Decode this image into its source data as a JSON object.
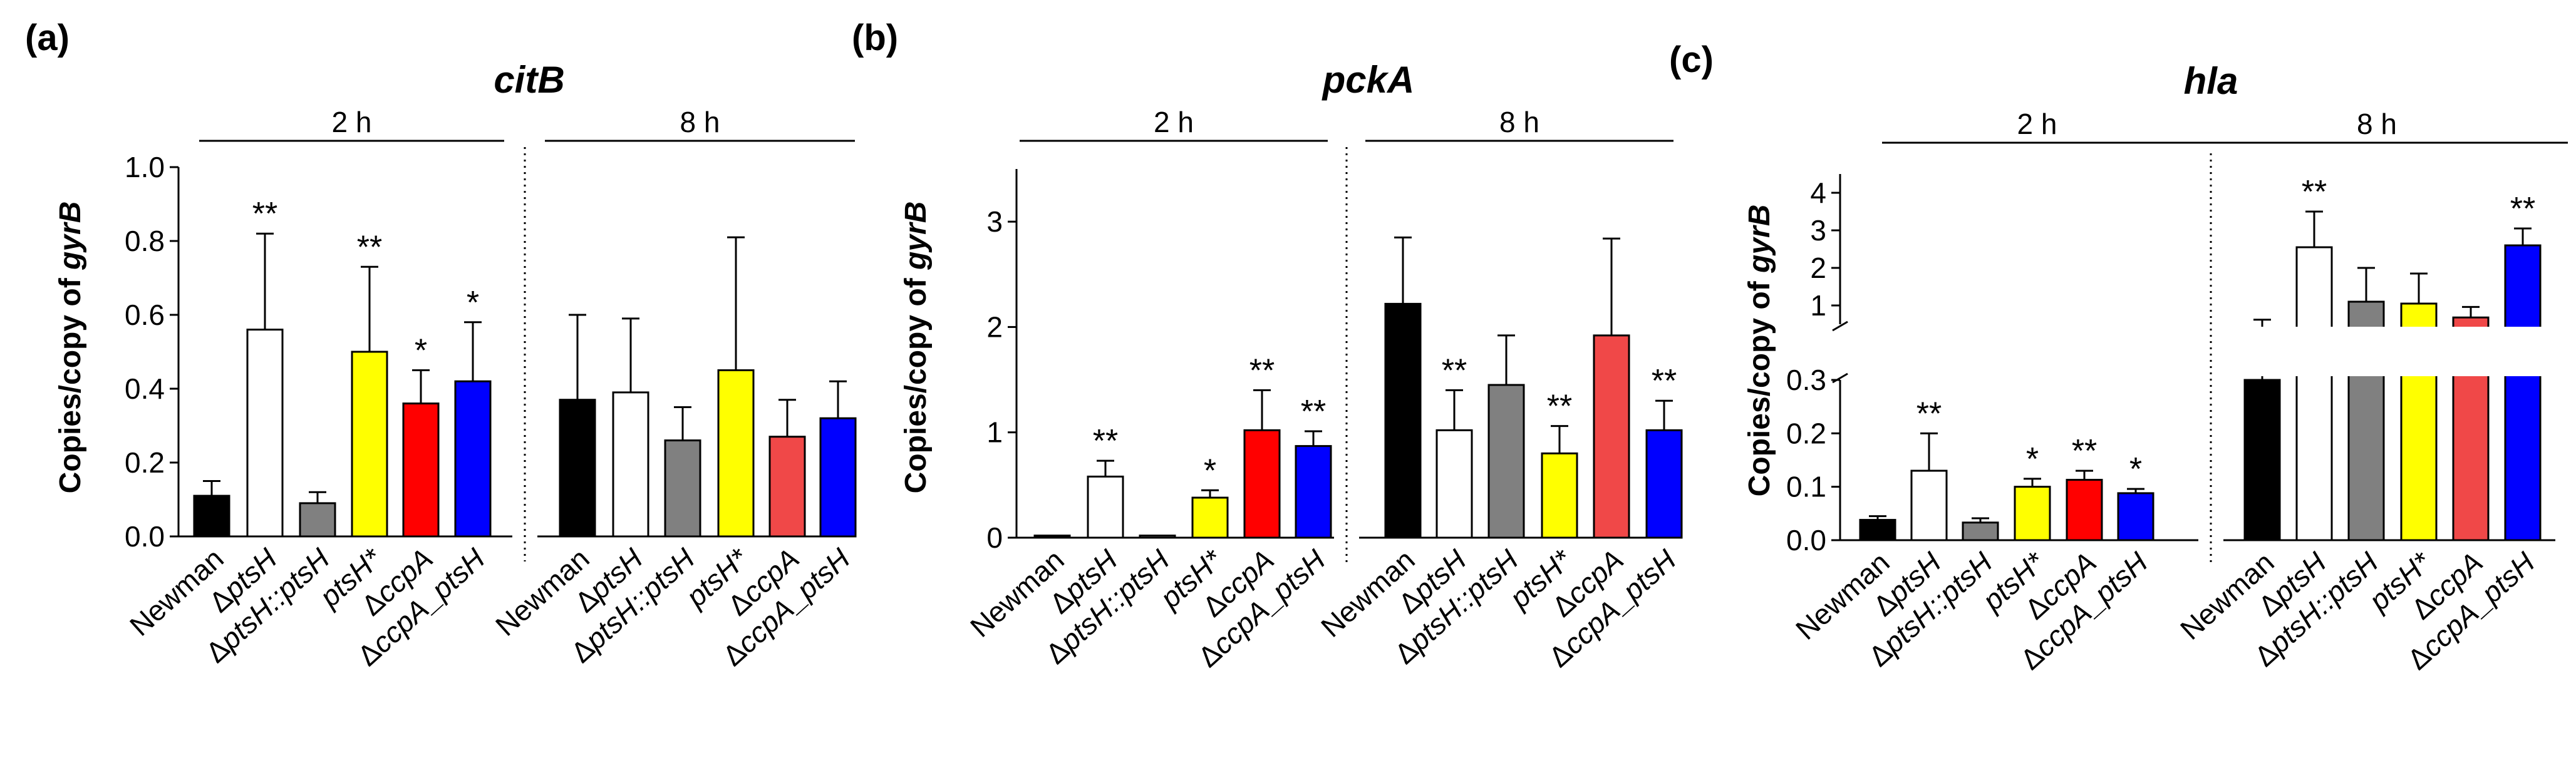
{
  "chart_data": [
    {
      "type": "bar",
      "panel_label": "(a)",
      "title": "citB",
      "ylabel_prefix": "Copies/copy of ",
      "ylabel_gene": "gyrB",
      "ylim": [
        0,
        1.0
      ],
      "yticks": [
        0.0,
        0.2,
        0.4,
        0.6,
        0.8,
        1.0
      ],
      "ytick_labels": [
        "0.0",
        "0.2",
        "0.4",
        "0.6",
        "0.8",
        "1.0"
      ],
      "groups": [
        {
          "label": "2 h",
          "categories": [
            "Newman",
            "ΔptsH",
            "ΔptsH::ptsH",
            "ptsH*",
            "ΔccpA",
            "ΔccpA_ptsH"
          ],
          "values": [
            0.11,
            0.56,
            0.09,
            0.5,
            0.36,
            0.42
          ],
          "errors": [
            0.04,
            0.26,
            0.03,
            0.23,
            0.09,
            0.16
          ],
          "significance": [
            "",
            "**",
            "",
            "**",
            "*",
            "*"
          ]
        },
        {
          "label": "8 h",
          "categories": [
            "Newman",
            "ΔptsH",
            "ΔptsH::ptsH",
            "ptsH*",
            "ΔccpA",
            "ΔccpA_ptsH"
          ],
          "values": [
            0.37,
            0.39,
            0.26,
            0.45,
            0.27,
            0.32
          ],
          "errors": [
            0.23,
            0.2,
            0.09,
            0.36,
            0.1,
            0.1
          ],
          "significance": [
            "",
            "",
            "",
            "",
            "",
            ""
          ]
        }
      ]
    },
    {
      "type": "bar",
      "panel_label": "(b)",
      "title": "pckA",
      "ylabel_prefix": "Copies/copy of ",
      "ylabel_gene": "gyrB",
      "ylim": [
        0,
        3.5
      ],
      "yticks": [
        0,
        1,
        2,
        3
      ],
      "ytick_labels": [
        "0",
        "1",
        "2",
        "3"
      ],
      "groups": [
        {
          "label": "2 h",
          "categories": [
            "Newman",
            "ΔptsH",
            "ΔptsH::ptsH",
            "ptsH*",
            "ΔccpA",
            "ΔccpA_ptsH"
          ],
          "values": [
            0.02,
            0.58,
            0.02,
            0.38,
            1.02,
            0.87
          ],
          "errors": [
            0.0,
            0.15,
            0.0,
            0.07,
            0.38,
            0.14
          ],
          "significance": [
            "",
            "**",
            "",
            "*",
            "**",
            "**"
          ]
        },
        {
          "label": "8 h",
          "categories": [
            "Newman",
            "ΔptsH",
            "ΔptsH::ptsH",
            "ptsH*",
            "ΔccpA",
            "ΔccpA_ptsH"
          ],
          "values": [
            2.22,
            1.02,
            1.45,
            0.8,
            1.92,
            1.02
          ],
          "errors": [
            0.63,
            0.38,
            0.47,
            0.26,
            0.92,
            0.28
          ],
          "significance": [
            "",
            "**",
            "",
            "**",
            "",
            "**"
          ]
        }
      ]
    },
    {
      "type": "bar",
      "panel_label": "(c)",
      "title": "hla",
      "ylabel_prefix": "Copies/copy of ",
      "ylabel_gene": "gyrB",
      "axis_break": true,
      "ylim_lower": [
        0,
        0.3
      ],
      "yticks_lower": [
        0.0,
        0.1,
        0.2,
        0.3
      ],
      "ytick_labels_lower": [
        "0.0",
        "0.1",
        "0.2",
        "0.3"
      ],
      "ylim_upper": [
        0.5,
        4.5
      ],
      "yticks_upper": [
        1,
        2,
        3,
        4
      ],
      "ytick_labels_upper": [
        "1",
        "2",
        "3",
        "4"
      ],
      "groups": [
        {
          "label": "2 h",
          "categories": [
            "Newman",
            "ΔptsH",
            "ΔptsH::ptsH",
            "ptsH*",
            "ΔccpA",
            "ΔccpA_ptsH"
          ],
          "values": [
            0.038,
            0.13,
            0.033,
            0.1,
            0.113,
            0.088
          ],
          "errors": [
            0.007,
            0.07,
            0.008,
            0.015,
            0.017,
            0.008
          ],
          "significance": [
            "",
            "**",
            "",
            "*",
            "**",
            "*"
          ]
        },
        {
          "label": "8 h",
          "categories": [
            "Newman",
            "ΔptsH",
            "ΔptsH::ptsH",
            "ptsH*",
            "ΔccpA",
            "ΔccpA_ptsH"
          ],
          "values": [
            0.45,
            2.55,
            1.1,
            1.05,
            0.68,
            2.6
          ],
          "errors": [
            0.17,
            0.95,
            0.9,
            0.8,
            0.28,
            0.45
          ],
          "significance": [
            "",
            "**",
            "",
            "",
            "",
            "**"
          ]
        }
      ]
    }
  ],
  "bar_colors": [
    "#000000",
    "#ffffff",
    "#808080",
    "#ffff00",
    "#ff0000",
    "#0000ff"
  ],
  "bar_colors_8h_ccpA": "#f04848"
}
